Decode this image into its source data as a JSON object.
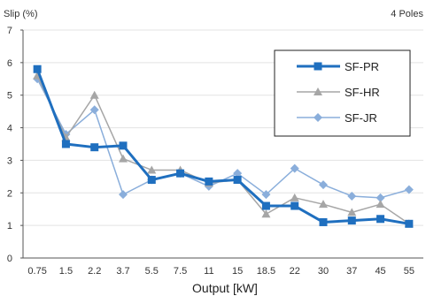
{
  "chart_data": {
    "type": "line",
    "ylabel": "Slip (%)",
    "xlabel": "Output [kW]",
    "corner_note": "4 Poles",
    "ylim": [
      0,
      7
    ],
    "yticks": [
      "0",
      "1",
      "2",
      "3",
      "4",
      "5",
      "6",
      "7"
    ],
    "categories": [
      "0.75",
      "1.5",
      "2.2",
      "3.7",
      "5.5",
      "7.5",
      "11",
      "15",
      "18.5",
      "22",
      "30",
      "37",
      "45",
      "55"
    ],
    "grid": true,
    "legend_position": "top-right",
    "series": [
      {
        "name": "SF-PR",
        "color": "#1f6fbf",
        "marker": "square",
        "values": [
          5.8,
          3.5,
          3.4,
          3.45,
          2.4,
          2.6,
          2.35,
          2.4,
          1.6,
          1.6,
          1.1,
          1.15,
          1.2,
          1.05
        ]
      },
      {
        "name": "SF-HR",
        "color": "#a6a6a6",
        "marker": "triangle",
        "values": [
          5.6,
          3.7,
          5.0,
          3.05,
          2.7,
          2.7,
          2.3,
          2.4,
          1.35,
          1.85,
          1.65,
          1.4,
          1.65,
          1.05
        ]
      },
      {
        "name": "SF-JR",
        "color": "#8aaedb",
        "marker": "diamond",
        "values": [
          5.5,
          3.8,
          4.55,
          1.95,
          2.4,
          2.6,
          2.2,
          2.6,
          1.95,
          2.75,
          2.25,
          1.9,
          1.85,
          2.1
        ]
      }
    ]
  }
}
